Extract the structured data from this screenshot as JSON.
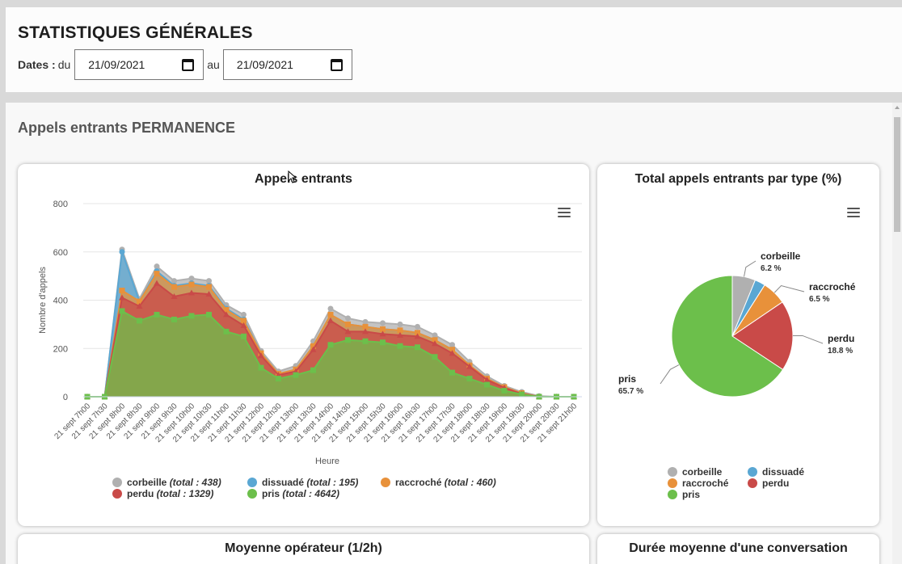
{
  "header": {
    "title": "STATISTIQUES GÉNÉRALES",
    "dates_label": "Dates :",
    "from_label": "du",
    "from_value": "21/09/2021",
    "to_label": "au",
    "to_value": "21/09/2021"
  },
  "section": {
    "title": "Appels entrants PERMANENCE"
  },
  "area_card": {
    "title": "Appels entrants"
  },
  "pie_card": {
    "title": "Total appels entrants par type (%)"
  },
  "bottom_cards": {
    "left_title": "Moyenne opérateur (1/2h)",
    "right_title": "Durée moyenne d'une conversation"
  },
  "icons": {
    "menu": "hamburger-menu-icon",
    "calendar": "calendar-icon",
    "cursor": "mouse-pointer-icon"
  },
  "chart_data": [
    {
      "type": "area",
      "stacked": true,
      "title": "Appels entrants",
      "xlabel": "Heure",
      "ylabel": "Nombre d'appels",
      "ylim": [
        0,
        800
      ],
      "yticks": [
        "0",
        "200",
        "400",
        "600",
        "800"
      ],
      "grid": true,
      "legend_position": "bottom",
      "categories": [
        "21 sept 7h00",
        "21 sept 7h30",
        "21 sept 8h00",
        "21 sept 8h30",
        "21 sept 9h00",
        "21 sept 9h30",
        "21 sept 10h00",
        "21 sept 10h30",
        "21 sept 11h00",
        "21 sept 11h30",
        "21 sept 12h00",
        "21 sept 12h30",
        "21 sept 13h00",
        "21 sept 13h30",
        "21 sept 14h00",
        "21 sept 14h30",
        "21 sept 15h00",
        "21 sept 15h30",
        "21 sept 16h00",
        "21 sept 16h30",
        "21 sept 17h00",
        "21 sept 17h30",
        "21 sept 18h00",
        "21 sept 18h30",
        "21 sept 19h00",
        "21 sept 19h30",
        "21 sept 20h00",
        "21 sept 20h30",
        "21 sept 21h00"
      ],
      "series": [
        {
          "name": "pris",
          "legend": "pris",
          "total_text": "(total : 4642)",
          "color": "#6cbf4b",
          "marker": "square",
          "values": [
            0,
            0,
            355,
            315,
            340,
            320,
            335,
            340,
            270,
            250,
            120,
            75,
            90,
            110,
            215,
            235,
            230,
            225,
            210,
            205,
            165,
            100,
            75,
            50,
            25,
            10,
            0,
            0,
            0
          ]
        },
        {
          "name": "perdu",
          "legend": "perdu",
          "total_text": "(total : 1329)",
          "color": "#c94a48",
          "marker": "triangle",
          "values": [
            0,
            0,
            55,
            60,
            130,
            95,
            95,
            85,
            70,
            45,
            50,
            15,
            15,
            85,
            100,
            35,
            40,
            35,
            45,
            45,
            55,
            80,
            50,
            20,
            12,
            2,
            0,
            0,
            0
          ]
        },
        {
          "name": "raccroché",
          "legend": "raccroché",
          "total_text": "(total : 460)",
          "color": "#e8913a",
          "marker": "square",
          "values": [
            0,
            0,
            30,
            20,
            40,
            40,
            35,
            30,
            20,
            20,
            10,
            5,
            8,
            15,
            25,
            30,
            20,
            20,
            20,
            15,
            15,
            15,
            5,
            5,
            3,
            3,
            0,
            0,
            0
          ]
        },
        {
          "name": "dissuadé",
          "legend": "dissuadé",
          "total_text": "(total : 195)",
          "color": "#5aa7d3",
          "marker": "circle",
          "values": [
            0,
            0,
            160,
            0,
            10,
            5,
            5,
            5,
            5,
            5,
            0,
            0,
            0,
            0,
            0,
            0,
            0,
            0,
            0,
            0,
            0,
            0,
            0,
            0,
            0,
            0,
            0,
            0,
            0
          ]
        },
        {
          "name": "corbeille",
          "legend": "corbeille",
          "total_text": "(total : 438)",
          "color": "#b0b0b0",
          "marker": "circle",
          "values": [
            0,
            0,
            10,
            10,
            20,
            20,
            20,
            20,
            15,
            20,
            10,
            10,
            15,
            20,
            25,
            25,
            20,
            25,
            25,
            25,
            20,
            20,
            15,
            10,
            5,
            5,
            3,
            0,
            0
          ]
        }
      ]
    },
    {
      "type": "pie",
      "title": "Total appels entrants par type (%)",
      "legend_position": "bottom",
      "slices": [
        {
          "name": "corbeille",
          "value": 6.2,
          "label": "6.2 %",
          "color": "#b0b0b0"
        },
        {
          "name": "dissuadé",
          "value": 2.8,
          "label": "",
          "color": "#5aa7d3"
        },
        {
          "name": "raccroché",
          "value": 6.5,
          "label": "6.5 %",
          "color": "#e8913a"
        },
        {
          "name": "perdu",
          "value": 18.8,
          "label": "18.8 %",
          "color": "#c94a48"
        },
        {
          "name": "pris",
          "value": 65.7,
          "label": "65.7 %",
          "color": "#6cbf4b"
        }
      ]
    }
  ]
}
